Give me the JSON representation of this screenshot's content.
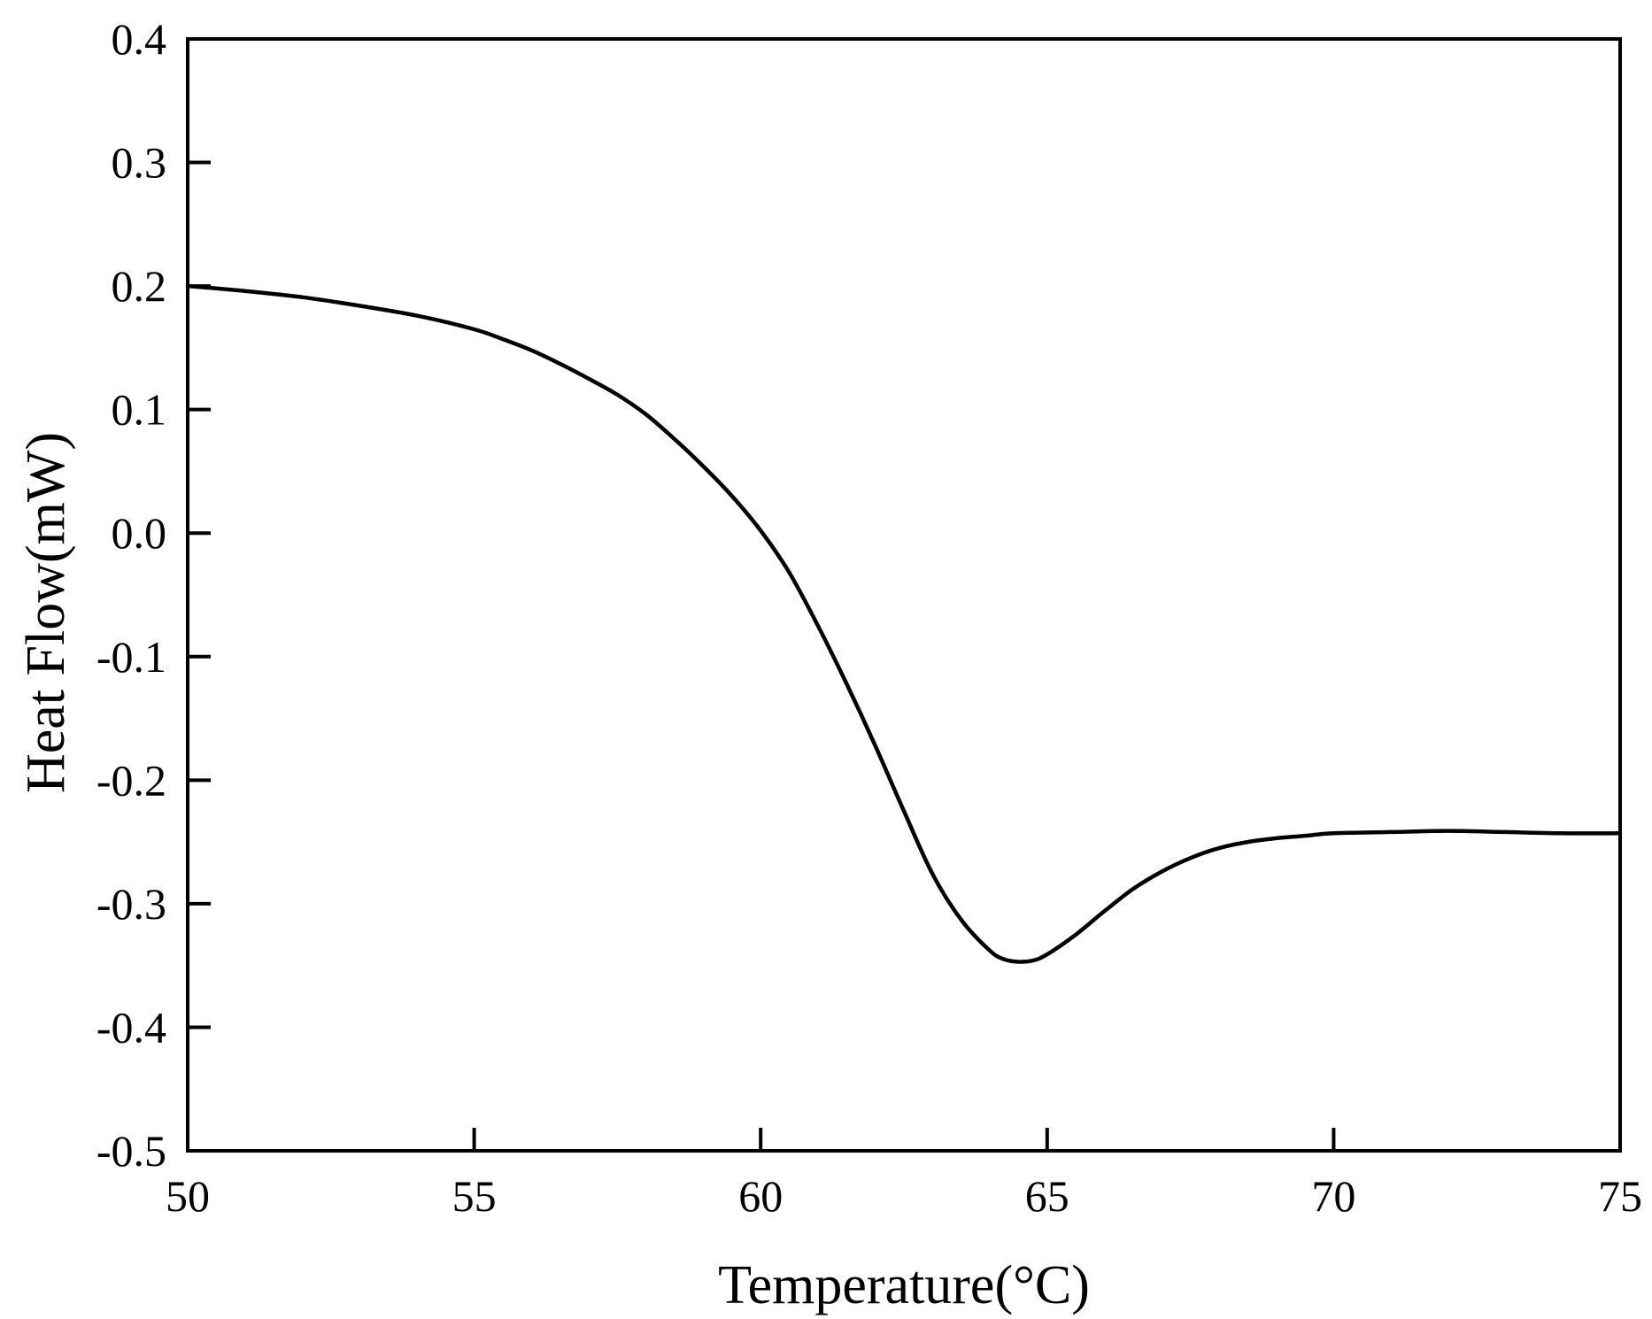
{
  "chart_data": {
    "type": "line",
    "title": "",
    "xlabel": "Temperature(°C)",
    "ylabel": "Heat Flow(mW)",
    "xlim": [
      50,
      75
    ],
    "ylim": [
      -0.5,
      0.4
    ],
    "grid": false,
    "legend": "none",
    "x_ticks": [
      "50",
      "55",
      "60",
      "65",
      "70",
      "75"
    ],
    "y_ticks": [
      "-0.5",
      "-0.4",
      "-0.3",
      "-0.2",
      "-0.1",
      "0.0",
      "0.1",
      "0.2",
      "0.3",
      "0.4"
    ],
    "line_color": "#000000",
    "series": [
      {
        "x": [
          50,
          51,
          52,
          53,
          54,
          55,
          55.5,
          56,
          56.5,
          57,
          57.5,
          58,
          58.5,
          59,
          59.5,
          60,
          60.5,
          61,
          61.5,
          62,
          62.5,
          63,
          63.5,
          64,
          64.25,
          64.5,
          64.75,
          65,
          65.5,
          66,
          66.5,
          67,
          67.5,
          68,
          68.5,
          69,
          69.5,
          70,
          71,
          72,
          73,
          74,
          75
        ],
        "y": [
          0.2,
          0.196,
          0.191,
          0.184,
          0.176,
          0.165,
          0.157,
          0.148,
          0.137,
          0.125,
          0.112,
          0.096,
          0.076,
          0.054,
          0.03,
          0.002,
          -0.032,
          -0.075,
          -0.122,
          -0.172,
          -0.225,
          -0.276,
          -0.313,
          -0.338,
          -0.345,
          -0.347,
          -0.346,
          -0.341,
          -0.325,
          -0.306,
          -0.288,
          -0.274,
          -0.263,
          -0.255,
          -0.25,
          -0.247,
          -0.245,
          -0.243,
          -0.242,
          -0.241,
          -0.242,
          -0.243,
          -0.243
        ]
      }
    ]
  }
}
